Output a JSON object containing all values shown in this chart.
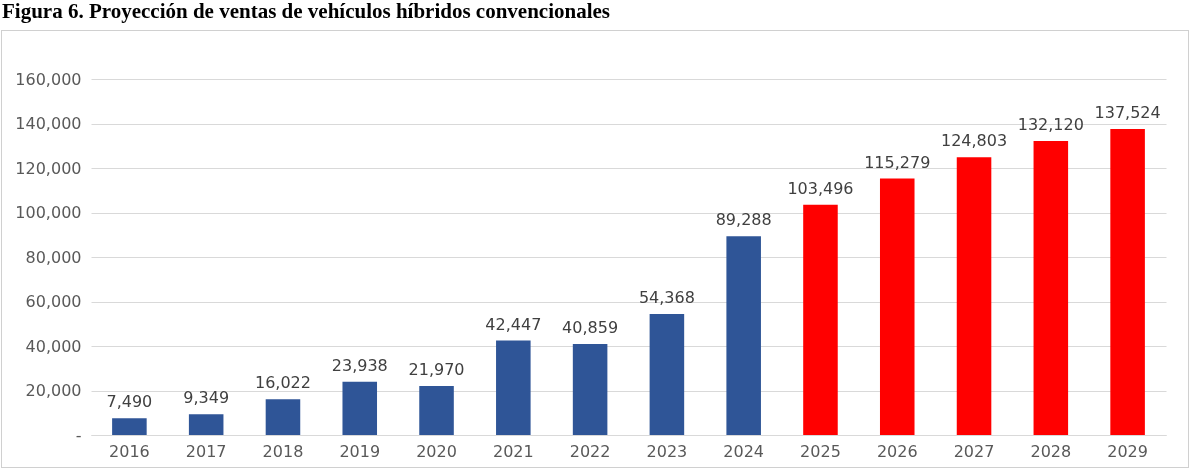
{
  "chart_data": {
    "type": "bar",
    "title": "Figura 6. Proyección de ventas de vehículos híbridos convencionales",
    "categories": [
      "2016",
      "2017",
      "2018",
      "2019",
      "2020",
      "2021",
      "2022",
      "2023",
      "2024",
      "2025",
      "2026",
      "2027",
      "2028",
      "2029"
    ],
    "values": [
      7490,
      9349,
      16022,
      23938,
      21970,
      42447,
      40859,
      54368,
      89288,
      103496,
      115279,
      124803,
      132120,
      137524
    ],
    "value_labels": [
      "7,490",
      "9,349",
      "16,022",
      "23,938",
      "21,970",
      "42,447",
      "40,859",
      "54,368",
      "89,288",
      "103,496",
      "115,279",
      "124,803",
      "132,120",
      "137,524"
    ],
    "colors": [
      "#2f5597",
      "#2f5597",
      "#2f5597",
      "#2f5597",
      "#2f5597",
      "#2f5597",
      "#2f5597",
      "#2f5597",
      "#2f5597",
      "#ff0000",
      "#ff0000",
      "#ff0000",
      "#ff0000",
      "#ff0000"
    ],
    "ylim": [
      0,
      160000
    ],
    "yticks": [
      {
        "value": 0,
        "label": "-"
      },
      {
        "value": 20000,
        "label": "20,000"
      },
      {
        "value": 40000,
        "label": "40,000"
      },
      {
        "value": 60000,
        "label": "60,000"
      },
      {
        "value": 80000,
        "label": "80,000"
      },
      {
        "value": 100000,
        "label": "100,000"
      },
      {
        "value": 120000,
        "label": "120,000"
      },
      {
        "value": 140000,
        "label": "140,000"
      },
      {
        "value": 160000,
        "label": "160,000"
      }
    ],
    "grid": "y"
  }
}
